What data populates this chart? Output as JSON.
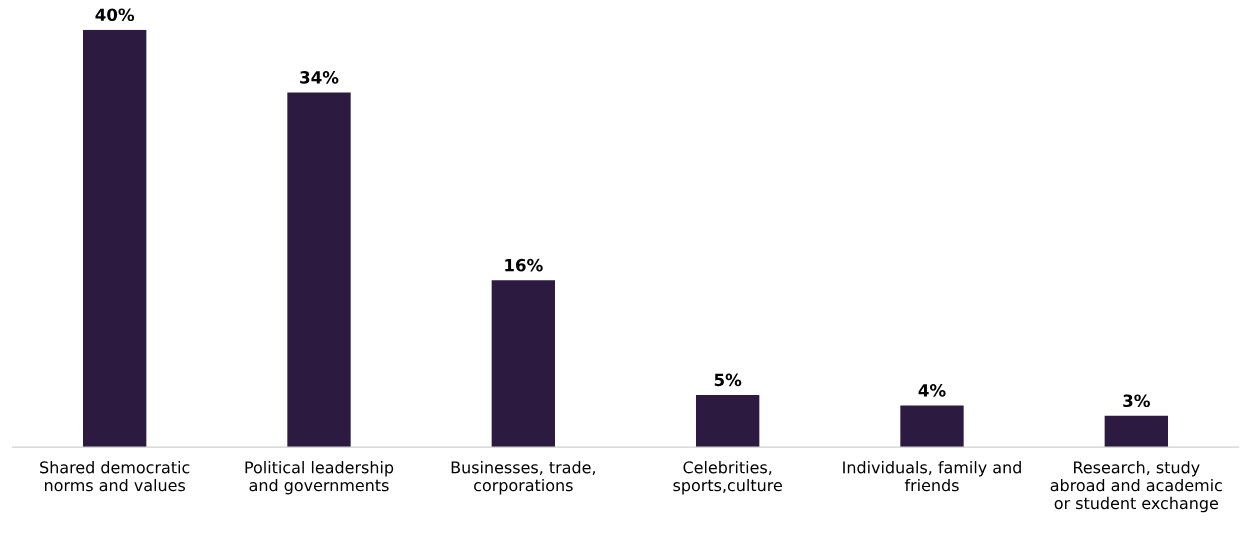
{
  "chart_data": {
    "type": "bar",
    "categories": [
      "Shared democratic\nnorms and values",
      "Political leadership\nand governments",
      "Businesses, trade,\ncorporations",
      "Celebrities,\nsports,culture",
      "Individuals, family and\nfriends",
      "Research, study\nabroad and academic\nor student exchange"
    ],
    "values": [
      40,
      34,
      16,
      5,
      4,
      3
    ],
    "value_labels": [
      "40%",
      "34%",
      "16%",
      "5%",
      "4%",
      "3%"
    ],
    "color": "#2c1a40",
    "grid": false,
    "legend": false,
    "tick_labels": "x"
  }
}
